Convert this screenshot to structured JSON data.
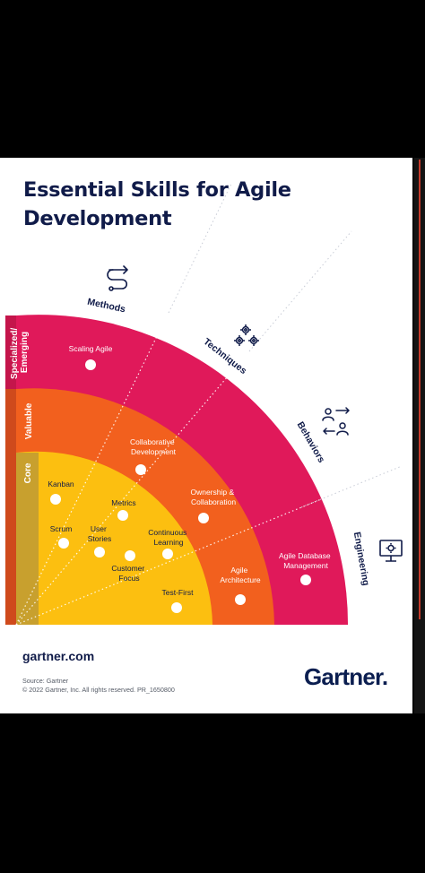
{
  "title": "Essential Skills for Agile Development",
  "tiers": [
    {
      "label": "Specialized/\nEmerging",
      "line1": "Specialized/",
      "line2": "Emerging",
      "color": "#e0195a"
    },
    {
      "label": "Valuable",
      "color": "#f2601e"
    },
    {
      "label": "Core",
      "color": "#fcbf10"
    }
  ],
  "categories": [
    {
      "label": "Methods",
      "icon": "flow-arrows-icon"
    },
    {
      "label": "Techniques",
      "icon": "gears-icon"
    },
    {
      "label": "Behaviors",
      "icon": "people-exchange-icon"
    },
    {
      "label": "Engineering",
      "icon": "monitor-gear-icon"
    }
  ],
  "skills": [
    {
      "id": "scaling-agile",
      "label": "Scaling Agile",
      "tier": "Specialized/Emerging",
      "category": "Methods"
    },
    {
      "id": "collaborative-development",
      "label": "Collaborative\nDevelopment",
      "tier": "Valuable",
      "category": "Techniques"
    },
    {
      "id": "kanban",
      "label": "Kanban",
      "tier": "Core",
      "category": "Methods"
    },
    {
      "id": "metrics",
      "label": "Metrics",
      "tier": "Core",
      "category": "Techniques"
    },
    {
      "id": "ownership-collaboration",
      "label": "Ownership &\nCollaboration",
      "tier": "Valuable",
      "category": "Behaviors"
    },
    {
      "id": "scrum",
      "label": "Scrum",
      "tier": "Core",
      "category": "Methods"
    },
    {
      "id": "user-stories",
      "label": "User\nStories",
      "tier": "Core",
      "category": "Techniques"
    },
    {
      "id": "continuous-learning",
      "label": "Continuous\nLearning",
      "tier": "Core",
      "category": "Behaviors"
    },
    {
      "id": "customer-focus",
      "label": "Customer\nFocus",
      "tier": "Core",
      "category": "Behaviors"
    },
    {
      "id": "agile-database-management",
      "label": "Agile Database\nManagement",
      "tier": "Specialized/Emerging",
      "category": "Engineering"
    },
    {
      "id": "agile-architecture",
      "label": "Agile\nArchitecture",
      "tier": "Valuable",
      "category": "Engineering"
    },
    {
      "id": "test-first",
      "label": "Test-First",
      "tier": "Core",
      "category": "Engineering"
    }
  ],
  "footer": {
    "url": "gartner.com",
    "source": "Source: Gartner",
    "copyright": "© 2022 Gartner, Inc. All rights reserved. PR_1650800",
    "logo": "Gartner",
    "logo_dot": "."
  },
  "colors": {
    "navy": "#101b49",
    "specialized": "#e0195a",
    "valuable": "#f2601e",
    "core": "#fcbf10",
    "core_side": "#c8a02e",
    "valuable_side": "#cf4a1c",
    "specialized_side": "#c4154b"
  }
}
